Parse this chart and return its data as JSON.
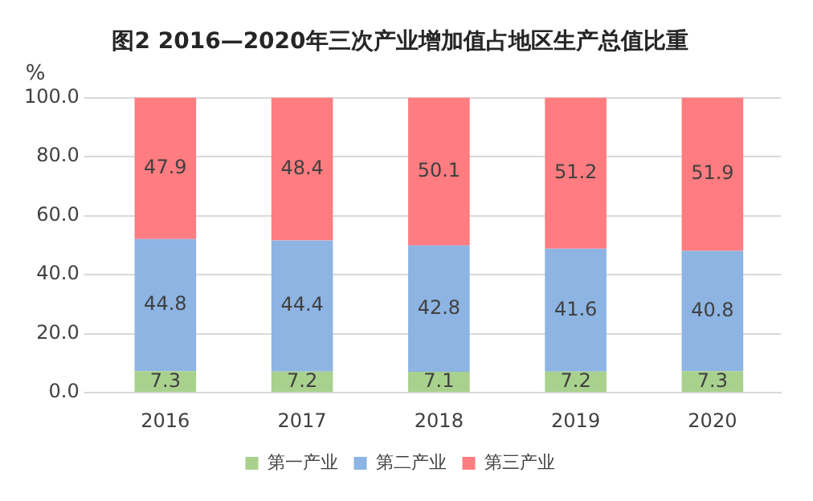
{
  "chart_data": {
    "type": "bar",
    "title": "图2 2016—2020年三次产业增加值占地区生产总值比重",
    "ylabel": "%",
    "categories": [
      "2016",
      "2017",
      "2018",
      "2019",
      "2020"
    ],
    "stacked": true,
    "data_labels": true,
    "grid": "y",
    "legend": "bottom",
    "ylim": [
      0,
      100
    ],
    "yticks": [
      {
        "value": 0,
        "label": "0.0"
      },
      {
        "value": 20,
        "label": "20.0"
      },
      {
        "value": 40,
        "label": "40.0"
      },
      {
        "value": 60,
        "label": "60.0"
      },
      {
        "value": 80,
        "label": "80.0"
      },
      {
        "value": 100,
        "label": "100.0"
      }
    ],
    "series": [
      {
        "name": "第一产业",
        "color": "#a9d18e",
        "values": [
          7.3,
          7.2,
          7.1,
          7.2,
          7.3
        ]
      },
      {
        "name": "第二产业",
        "color": "#8db4e2",
        "values": [
          44.8,
          44.4,
          42.8,
          41.6,
          40.8
        ]
      },
      {
        "name": "第三产业",
        "color": "#ff7c80",
        "values": [
          47.9,
          48.4,
          50.1,
          51.2,
          51.9
        ]
      }
    ]
  }
}
